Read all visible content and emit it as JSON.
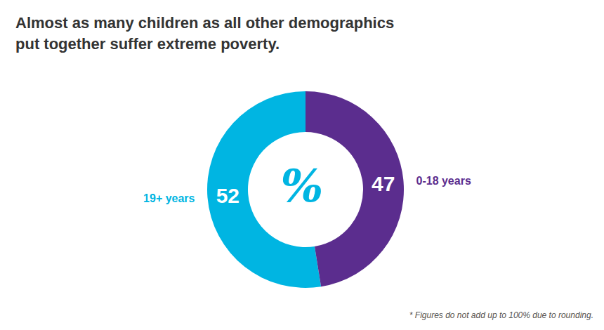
{
  "chart_data": {
    "type": "pie",
    "title": "Almost as many children as all other demographics",
    "subtitle": "put together suffer extreme poverty.",
    "categories": [
      "19+ years",
      "0-18 years"
    ],
    "values": [
      52,
      47
    ],
    "colors": [
      "#00b5e2",
      "#5b2d8e"
    ],
    "data_labels": true,
    "annotations": [
      "%",
      "* Figures do not add up to 100% due to rounding."
    ]
  }
}
